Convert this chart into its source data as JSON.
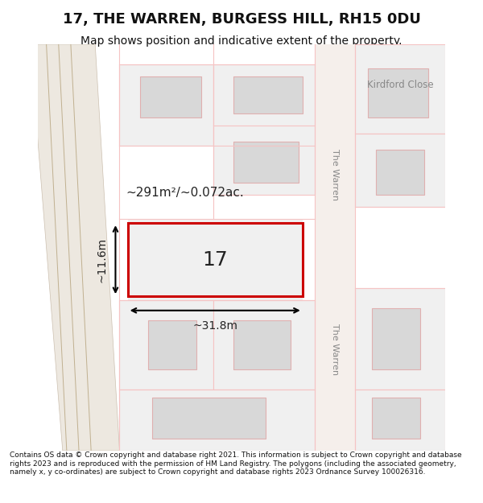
{
  "title": "17, THE WARREN, BURGESS HILL, RH15 0DU",
  "subtitle": "Map shows position and indicative extent of the property.",
  "footer": "Contains OS data © Crown copyright and database right 2021. This information is subject to Crown copyright and database rights 2023 and is reproduced with the permission of HM Land Registry. The polygons (including the associated geometry, namely x, y co-ordinates) are subject to Crown copyright and database rights 2023 Ordnance Survey 100026316.",
  "area_label": "~291m²/~0.072ac.",
  "width_label": "~31.8m",
  "height_label": "~11.6m",
  "plot_number": "17",
  "bg_color": "#f5f0eb",
  "map_bg": "#ffffff",
  "road_color": "#f5c4c4",
  "road_fill": "#f5c4c4",
  "building_fill": "#d8d8d8",
  "building_edge": "#e0b0b0",
  "plot_rect_color": "#cc0000",
  "road_label1": "Kirdford Close",
  "road_label2": "The Warren",
  "road_label3": "The Warren"
}
